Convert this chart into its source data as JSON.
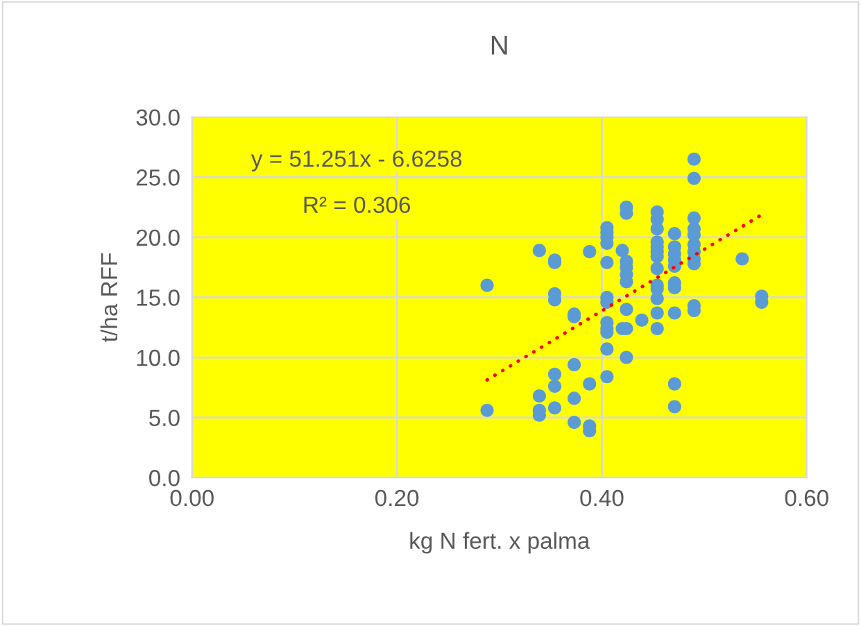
{
  "chart_data": {
    "type": "scatter",
    "title": "N",
    "xlabel": "kg N fert. x palma",
    "ylabel": "t/ha RFF",
    "xlim": [
      0,
      0.6
    ],
    "xticks": [
      {
        "value": 0,
        "label": "0.00"
      },
      {
        "value": 0.2,
        "label": "0.20"
      },
      {
        "value": 0.4,
        "label": "0.40"
      },
      {
        "value": 0.6,
        "label": "0.60"
      }
    ],
    "ylim": [
      0,
      30
    ],
    "yticks": [
      {
        "value": 0,
        "label": "0.0"
      },
      {
        "value": 5,
        "label": "5.0"
      },
      {
        "value": 10,
        "label": "10.0"
      },
      {
        "value": 15,
        "label": "15.0"
      },
      {
        "value": 20,
        "label": "20.0"
      },
      {
        "value": 25,
        "label": "25.0"
      },
      {
        "value": 30,
        "label": "30.0"
      }
    ],
    "grid": true,
    "legend": false,
    "marker": "circle",
    "series": [
      {
        "color": "#5b9bd5",
        "x": [
          0.288,
          0.288,
          0.339,
          0.339,
          0.339,
          0.339,
          0.354,
          0.354,
          0.354,
          0.354,
          0.354,
          0.354,
          0.354,
          0.373,
          0.373,
          0.373,
          0.373,
          0.373,
          0.388,
          0.388,
          0.388,
          0.388,
          0.405,
          0.405,
          0.405,
          0.405,
          0.405,
          0.405,
          0.405,
          0.405,
          0.405,
          0.405,
          0.405,
          0.405,
          0.42,
          0.42,
          0.424,
          0.424,
          0.424,
          0.424,
          0.424,
          0.424,
          0.424,
          0.424,
          0.424,
          0.439,
          0.454,
          0.454,
          0.454,
          0.454,
          0.454,
          0.454,
          0.454,
          0.454,
          0.454,
          0.454,
          0.454,
          0.454,
          0.454,
          0.471,
          0.471,
          0.471,
          0.471,
          0.471,
          0.471,
          0.471,
          0.471,
          0.471,
          0.471,
          0.49,
          0.49,
          0.49,
          0.49,
          0.49,
          0.49,
          0.49,
          0.49,
          0.49,
          0.49,
          0.49,
          0.537,
          0.556,
          0.556
        ],
        "values": [
          16.0,
          5.6,
          18.9,
          6.8,
          5.6,
          5.2,
          18.1,
          17.9,
          15.3,
          14.8,
          8.6,
          7.6,
          5.8,
          13.6,
          13.4,
          9.4,
          6.6,
          4.6,
          18.8,
          7.8,
          4.3,
          3.9,
          20.8,
          20.4,
          20.0,
          19.5,
          17.9,
          15.0,
          14.6,
          12.9,
          12.4,
          12.1,
          10.7,
          8.4,
          18.9,
          12.4,
          22.5,
          22.0,
          18.0,
          17.5,
          16.9,
          16.3,
          14.0,
          12.4,
          10.0,
          13.1,
          22.1,
          21.5,
          20.7,
          19.6,
          19.2,
          18.8,
          18.4,
          17.4,
          16.0,
          15.7,
          14.9,
          13.7,
          12.4,
          20.3,
          19.2,
          18.6,
          18.1,
          17.6,
          16.2,
          15.8,
          13.7,
          7.8,
          5.9,
          26.5,
          24.9,
          21.6,
          20.7,
          20.2,
          19.4,
          18.8,
          18.2,
          17.8,
          14.3,
          13.9,
          18.2,
          15.1,
          14.6
        ]
      },
      {
        "type": "line",
        "color": "#ff0000",
        "line_style": "dotted",
        "marker": "none",
        "x": [
          0.288,
          0.554
        ],
        "values": [
          8.13,
          21.77
        ]
      }
    ],
    "annotations": [
      "y = 51.251x - 6.6258",
      "R² = 0.306"
    ]
  }
}
